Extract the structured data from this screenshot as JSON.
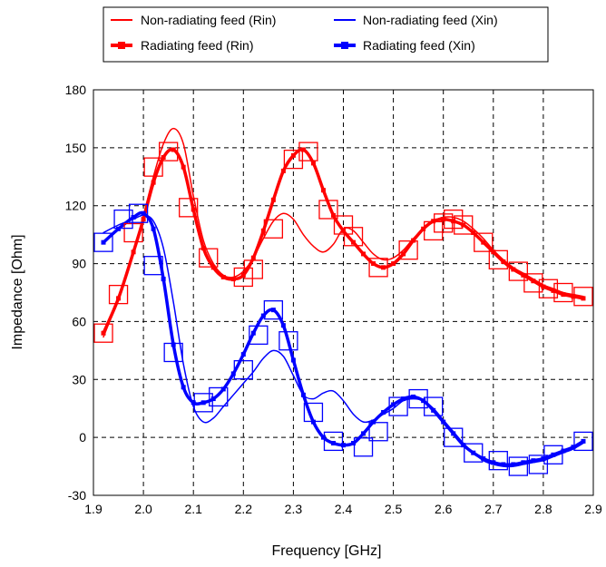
{
  "chart_data": {
    "type": "line",
    "xlabel": "Frequency [GHz]",
    "ylabel": "Impedance [Ohm]",
    "xlim": [
      1.9,
      2.9
    ],
    "ylim": [
      -30,
      180
    ],
    "xticks": [
      1.9,
      2.0,
      2.1,
      2.2,
      2.3,
      2.4,
      2.5,
      2.6,
      2.7,
      2.8,
      2.9
    ],
    "xtick_labels": [
      "1.9",
      "2.0",
      "2.1",
      "2.2",
      "2.3",
      "2.4",
      "2.5",
      "2.6",
      "2.7",
      "2.8",
      "2.9"
    ],
    "yticks": [
      -30,
      0,
      30,
      60,
      90,
      120,
      150,
      180
    ],
    "ytick_labels": [
      "-30",
      "0",
      "30",
      "60",
      "90",
      "120",
      "150",
      "180"
    ],
    "grid": true,
    "legend_position": "top",
    "series": [
      {
        "name": "Non-radiating feed (Rin)",
        "color": "#ff0000",
        "style": "thin",
        "x": [
          1.92,
          1.95,
          1.98,
          2.0,
          2.02,
          2.04,
          2.06,
          2.08,
          2.1,
          2.12,
          2.14,
          2.16,
          2.18,
          2.2,
          2.22,
          2.24,
          2.26,
          2.28,
          2.3,
          2.32,
          2.34,
          2.36,
          2.38,
          2.4,
          2.42,
          2.44,
          2.46,
          2.48,
          2.5,
          2.52,
          2.54,
          2.56,
          2.58,
          2.6,
          2.62,
          2.64,
          2.66,
          2.68,
          2.7,
          2.72,
          2.74,
          2.76,
          2.78,
          2.8,
          2.82,
          2.84,
          2.86,
          2.88
        ],
        "values": [
          52,
          72,
          96,
          115,
          135,
          152,
          160,
          152,
          125,
          102,
          90,
          84,
          83,
          86,
          93,
          103,
          112,
          116,
          113,
          105,
          99,
          96,
          100,
          108,
          107,
          101,
          95,
          92,
          93,
          97,
          103,
          108,
          112,
          114,
          114,
          112,
          108,
          103,
          97,
          92,
          88,
          85,
          82,
          79,
          77,
          75,
          74,
          73
        ]
      },
      {
        "name": "Non-radiating feed (Xin)",
        "color": "#0000ff",
        "style": "thin",
        "x": [
          1.92,
          1.95,
          1.98,
          2.0,
          2.02,
          2.04,
          2.06,
          2.08,
          2.1,
          2.12,
          2.14,
          2.16,
          2.18,
          2.2,
          2.22,
          2.24,
          2.26,
          2.28,
          2.3,
          2.32,
          2.34,
          2.36,
          2.38,
          2.4,
          2.42,
          2.44,
          2.46,
          2.48,
          2.5,
          2.52,
          2.54,
          2.56,
          2.58,
          2.6,
          2.62,
          2.64,
          2.66,
          2.68,
          2.7,
          2.72,
          2.74,
          2.76,
          2.78,
          2.8,
          2.82,
          2.84,
          2.86,
          2.88
        ],
        "values": [
          106,
          110,
          113,
          115,
          112,
          98,
          70,
          38,
          16,
          8,
          10,
          16,
          22,
          28,
          34,
          41,
          45,
          42,
          32,
          22,
          20,
          23,
          24,
          19,
          12,
          8,
          9,
          12,
          15,
          19,
          20,
          19,
          15,
          9,
          3,
          -3,
          -8,
          -12,
          -14,
          -15,
          -15,
          -14,
          -13,
          -12,
          -10,
          -8,
          -6,
          -3
        ]
      },
      {
        "name": "Radiating feed (Rin)",
        "color": "#ff0000",
        "style": "thick-markers",
        "x": [
          1.92,
          1.95,
          1.98,
          2.0,
          2.02,
          2.04,
          2.06,
          2.08,
          2.1,
          2.12,
          2.14,
          2.16,
          2.18,
          2.2,
          2.22,
          2.24,
          2.26,
          2.28,
          2.3,
          2.32,
          2.34,
          2.36,
          2.38,
          2.4,
          2.42,
          2.44,
          2.46,
          2.48,
          2.5,
          2.52,
          2.54,
          2.56,
          2.58,
          2.6,
          2.62,
          2.64,
          2.66,
          2.68,
          2.7,
          2.72,
          2.74,
          2.76,
          2.78,
          2.8,
          2.82,
          2.84,
          2.86,
          2.88
        ],
        "values": [
          54,
          72,
          96,
          113,
          132,
          145,
          149,
          140,
          118,
          98,
          88,
          83,
          82,
          84,
          93,
          107,
          123,
          138,
          146,
          149,
          142,
          128,
          115,
          107,
          101,
          95,
          90,
          88,
          90,
          95,
          102,
          108,
          112,
          113,
          112,
          110,
          106,
          101,
          96,
          91,
          87,
          84,
          81,
          78,
          76,
          74,
          73,
          72
        ]
      },
      {
        "name": "Radiating feed (Xin)",
        "color": "#0000ff",
        "style": "thick-markers",
        "x": [
          1.92,
          1.95,
          1.98,
          2.0,
          2.02,
          2.04,
          2.06,
          2.08,
          2.1,
          2.12,
          2.14,
          2.16,
          2.18,
          2.2,
          2.22,
          2.24,
          2.26,
          2.28,
          2.3,
          2.32,
          2.34,
          2.36,
          2.38,
          2.4,
          2.42,
          2.44,
          2.46,
          2.48,
          2.5,
          2.52,
          2.54,
          2.56,
          2.58,
          2.6,
          2.62,
          2.64,
          2.66,
          2.68,
          2.7,
          2.72,
          2.74,
          2.76,
          2.78,
          2.8,
          2.82,
          2.84,
          2.86,
          2.88
        ],
        "values": [
          101,
          108,
          114,
          116,
          108,
          82,
          48,
          26,
          18,
          18,
          20,
          25,
          33,
          43,
          54,
          63,
          66,
          58,
          40,
          22,
          8,
          0,
          -3,
          -4,
          -3,
          2,
          8,
          13,
          17,
          20,
          21,
          19,
          14,
          8,
          2,
          -4,
          -8,
          -11,
          -13,
          -14,
          -14,
          -13,
          -12,
          -11,
          -9,
          -7,
          -5,
          -2
        ]
      }
    ],
    "markers": {
      "radiating_rin": [
        [
          1.92,
          54
        ],
        [
          1.95,
          74
        ],
        [
          1.98,
          106
        ],
        [
          2.02,
          140
        ],
        [
          2.05,
          148
        ],
        [
          2.09,
          119
        ],
        [
          2.13,
          93
        ],
        [
          2.2,
          83
        ],
        [
          2.22,
          87
        ],
        [
          2.26,
          108
        ],
        [
          2.3,
          144
        ],
        [
          2.33,
          148
        ],
        [
          2.37,
          118
        ],
        [
          2.4,
          110
        ],
        [
          2.42,
          104
        ],
        [
          2.47,
          88
        ],
        [
          2.53,
          97
        ],
        [
          2.58,
          107
        ],
        [
          2.6,
          111
        ],
        [
          2.62,
          113
        ],
        [
          2.64,
          110
        ],
        [
          2.68,
          101
        ],
        [
          2.71,
          92
        ],
        [
          2.75,
          86
        ],
        [
          2.78,
          80
        ],
        [
          2.81,
          77
        ],
        [
          2.84,
          75
        ],
        [
          2.88,
          73
        ]
      ],
      "radiating_xin": [
        [
          1.92,
          101
        ],
        [
          1.96,
          113
        ],
        [
          1.99,
          116
        ],
        [
          2.02,
          89
        ],
        [
          2.06,
          44
        ],
        [
          2.12,
          18
        ],
        [
          2.15,
          21
        ],
        [
          2.2,
          35
        ],
        [
          2.23,
          53
        ],
        [
          2.26,
          66
        ],
        [
          2.29,
          50
        ],
        [
          2.34,
          13
        ],
        [
          2.38,
          -2
        ],
        [
          2.44,
          -5
        ],
        [
          2.47,
          3
        ],
        [
          2.51,
          16
        ],
        [
          2.55,
          20
        ],
        [
          2.58,
          16
        ],
        [
          2.62,
          0
        ],
        [
          2.66,
          -8
        ],
        [
          2.71,
          -12
        ],
        [
          2.75,
          -15
        ],
        [
          2.79,
          -14
        ],
        [
          2.82,
          -9
        ],
        [
          2.88,
          -2
        ]
      ]
    }
  }
}
